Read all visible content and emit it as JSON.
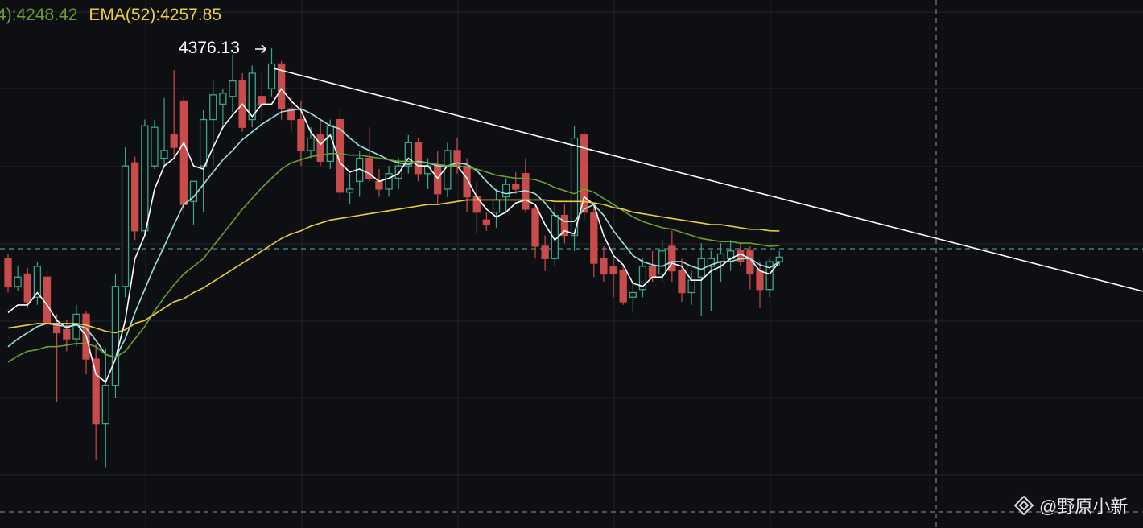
{
  "chart_data": {
    "type": "candlestick",
    "annotation": "4376.13",
    "watermark": "@野原小新",
    "up_color": "#3aa68a",
    "down_color": "#c94b4b",
    "ylim": [
      4065.6,
      4407.4
    ],
    "open": [
      4240,
      4222,
      4230,
      4215,
      4228,
      4198,
      4194,
      4188,
      4204,
      4175,
      4133,
      4158,
      4222,
      4302,
      4258,
      4300,
      4305,
      4320,
      4342,
      4277,
      4300,
      4330,
      4340,
      4345,
      4355,
      4330,
      4345,
      4350,
      4366,
      4337,
      4330,
      4310,
      4320,
      4303,
      4330,
      4283,
      4290,
      4305,
      4290,
      4285,
      4292,
      4300,
      4315,
      4295,
      4300,
      4285,
      4310,
      4300,
      4280,
      4265,
      4270,
      4280,
      4288,
      4295,
      4272,
      4248,
      4240,
      4268,
      4255,
      4320,
      4270,
      4240,
      4235,
      4232,
      4215,
      4220,
      4235,
      4230,
      4248,
      4232,
      4218,
      4228,
      4235,
      4238,
      4240,
      4245,
      4245,
      4232,
      4220,
      4238
    ],
    "high": [
      4243,
      4235,
      4234,
      4238,
      4232,
      4204,
      4200,
      4210,
      4206,
      4185,
      4182,
      4230,
      4312,
      4306,
      4330,
      4330,
      4344,
      4362,
      4346,
      4290,
      4336,
      4355,
      4350,
      4372,
      4360,
      4365,
      4360,
      4376.13,
      4368,
      4345,
      4342,
      4325,
      4330,
      4330,
      4338,
      4295,
      4310,
      4325,
      4298,
      4300,
      4305,
      4320,
      4318,
      4305,
      4310,
      4315,
      4318,
      4305,
      4290,
      4270,
      4285,
      4292,
      4296,
      4305,
      4275,
      4255,
      4275,
      4275,
      4326,
      4322,
      4275,
      4248,
      4240,
      4236,
      4225,
      4240,
      4245,
      4252,
      4258,
      4240,
      4232,
      4250,
      4245,
      4250,
      4252,
      4250,
      4248,
      4238,
      4240,
      4245
    ],
    "low": [
      4218,
      4219,
      4208,
      4210,
      4195,
      4147,
      4180,
      4183,
      4165,
      4110,
      4105,
      4150,
      4215,
      4252,
      4255,
      4298,
      4300,
      4305,
      4268,
      4262,
      4270,
      4300,
      4325,
      4335,
      4322,
      4325,
      4330,
      4345,
      4330,
      4322,
      4300,
      4305,
      4300,
      4298,
      4278,
      4275,
      4280,
      4290,
      4280,
      4280,
      4285,
      4295,
      4290,
      4285,
      4275,
      4280,
      4295,
      4270,
      4256,
      4258,
      4260,
      4270,
      4282,
      4270,
      4240,
      4232,
      4235,
      4250,
      4245,
      4265,
      4228,
      4225,
      4215,
      4210,
      4205,
      4215,
      4225,
      4225,
      4225,
      4212,
      4210,
      4203,
      4206,
      4225,
      4232,
      4235,
      4220,
      4208,
      4215,
      4235
    ],
    "close": [
      4222,
      4228,
      4212,
      4235,
      4198,
      4192,
      4188,
      4204,
      4175,
      4133,
      4158,
      4222,
      4300,
      4258,
      4326,
      4325,
      4310,
      4312,
      4275,
      4290,
      4330,
      4346,
      4347,
      4355,
      4325,
      4360,
      4340,
      4366,
      4337,
      4330,
      4310,
      4318,
      4303,
      4326,
      4283,
      4285,
      4305,
      4292,
      4285,
      4295,
      4300,
      4315,
      4295,
      4300,
      4282,
      4310,
      4300,
      4280,
      4270,
      4262,
      4278,
      4288,
      4285,
      4272,
      4248,
      4240,
      4268,
      4255,
      4318,
      4270,
      4237,
      4230,
      4230,
      4212,
      4218,
      4235,
      4228,
      4245,
      4232,
      4218,
      4226,
      4240,
      4240,
      4243,
      4245,
      4238,
      4230,
      4220,
      4238,
      4241
    ],
    "series": [
      {
        "color": "#ffffff",
        "values": [
          4205,
          4210,
          4210,
          4218,
          4210,
          4200,
          4195,
          4198,
          4190,
          4165,
          4160,
          4175,
          4200,
          4240,
          4255,
          4285,
          4300,
          4305,
          4315,
          4300,
          4298,
          4312,
          4325,
          4333,
          4340,
          4332,
          4340,
          4340,
          4350,
          4342,
          4336,
          4322,
          4314,
          4320,
          4302,
          4296,
          4298,
          4295,
          4290,
          4292,
          4295,
          4305,
          4300,
          4300,
          4292,
          4300,
          4300,
          4292,
          4280,
          4272,
          4267,
          4270,
          4276,
          4278,
          4275,
          4262,
          4252,
          4258,
          4256,
          4280,
          4275,
          4255,
          4242,
          4236,
          4224,
          4222,
          4228,
          4228,
          4237,
          4235,
          4226,
          4226,
          4232,
          4235,
          4240,
          4243,
          4240,
          4232,
          4230,
          4238
        ]
      },
      {
        "color": "#9fe3e0",
        "values": [
          4183,
          4188,
          4192,
          4196,
          4198,
          4197,
          4196,
          4197,
          4195,
          4187,
          4178,
          4176,
          4188,
          4205,
          4220,
          4235,
          4248,
          4262,
          4275,
          4280,
          4288,
          4296,
          4304,
          4310,
          4317,
          4322,
          4327,
          4331,
          4335,
          4336,
          4337,
          4334,
          4330,
          4326,
          4324,
          4318,
          4313,
          4310,
          4307,
          4304,
          4302,
          4301,
          4303,
          4302,
          4300,
          4300,
          4302,
          4301,
          4297,
          4290,
          4284,
          4282,
          4283,
          4284,
          4282,
          4276,
          4268,
          4264,
          4264,
          4272,
          4275,
          4268,
          4258,
          4250,
          4242,
          4238,
          4236,
          4235,
          4238,
          4238,
          4235,
          4233,
          4236,
          4238,
          4238,
          4240,
          4240,
          4236,
          4234,
          4238
        ]
      },
      {
        "name": "4):4248.42",
        "color": "#6a9f32",
        "values": [
          4173,
          4177,
          4180,
          4181,
          4183,
          4183,
          4184,
          4185,
          4185,
          4183,
          4178,
          4176,
          4180,
          4188,
          4196,
          4206,
          4215,
          4223,
          4230,
          4235,
          4240,
          4248,
          4256,
          4264,
          4272,
          4279,
          4286,
          4292,
          4298,
          4302,
          4304,
          4306,
          4307,
          4308,
          4308,
          4307,
          4307,
          4306,
          4305,
          4304,
          4303,
          4303,
          4302,
          4302,
          4301,
          4300,
          4300,
          4299,
          4298,
          4296,
          4294,
          4293,
          4292,
          4292,
          4291,
          4289,
          4286,
          4284,
          4282,
          4285,
          4283,
          4279,
          4275,
          4271,
          4267,
          4264,
          4262,
          4260,
          4259,
          4257,
          4255,
          4253,
          4252,
          4251,
          4251,
          4250,
          4250,
          4249,
          4248,
          4248.42
        ]
      },
      {
        "name": "EMA(52):4257.85",
        "color": "#e9cf3c",
        "values": [
          4195,
          4196,
          4197,
          4198,
          4198,
          4198,
          4198,
          4198,
          4197,
          4195,
          4193,
          4192,
          4194,
          4198,
          4200,
          4204,
          4208,
          4212,
          4214,
          4218,
          4221,
          4225,
          4229,
          4233,
          4237,
          4241,
          4245,
          4249,
          4253,
          4256,
          4258,
          4261,
          4263,
          4265,
          4266,
          4267,
          4268,
          4269,
          4270,
          4271,
          4272,
          4273,
          4274,
          4275,
          4275,
          4276,
          4277,
          4278,
          4278,
          4278,
          4278,
          4278,
          4278,
          4278,
          4278,
          4278,
          4277,
          4277,
          4277,
          4277,
          4276,
          4275,
          4273,
          4272,
          4270,
          4269,
          4268,
          4267,
          4266,
          4265,
          4264,
          4263,
          4262,
          4262,
          4261,
          4260,
          4259,
          4259,
          4258,
          4257.85
        ]
      }
    ]
  }
}
